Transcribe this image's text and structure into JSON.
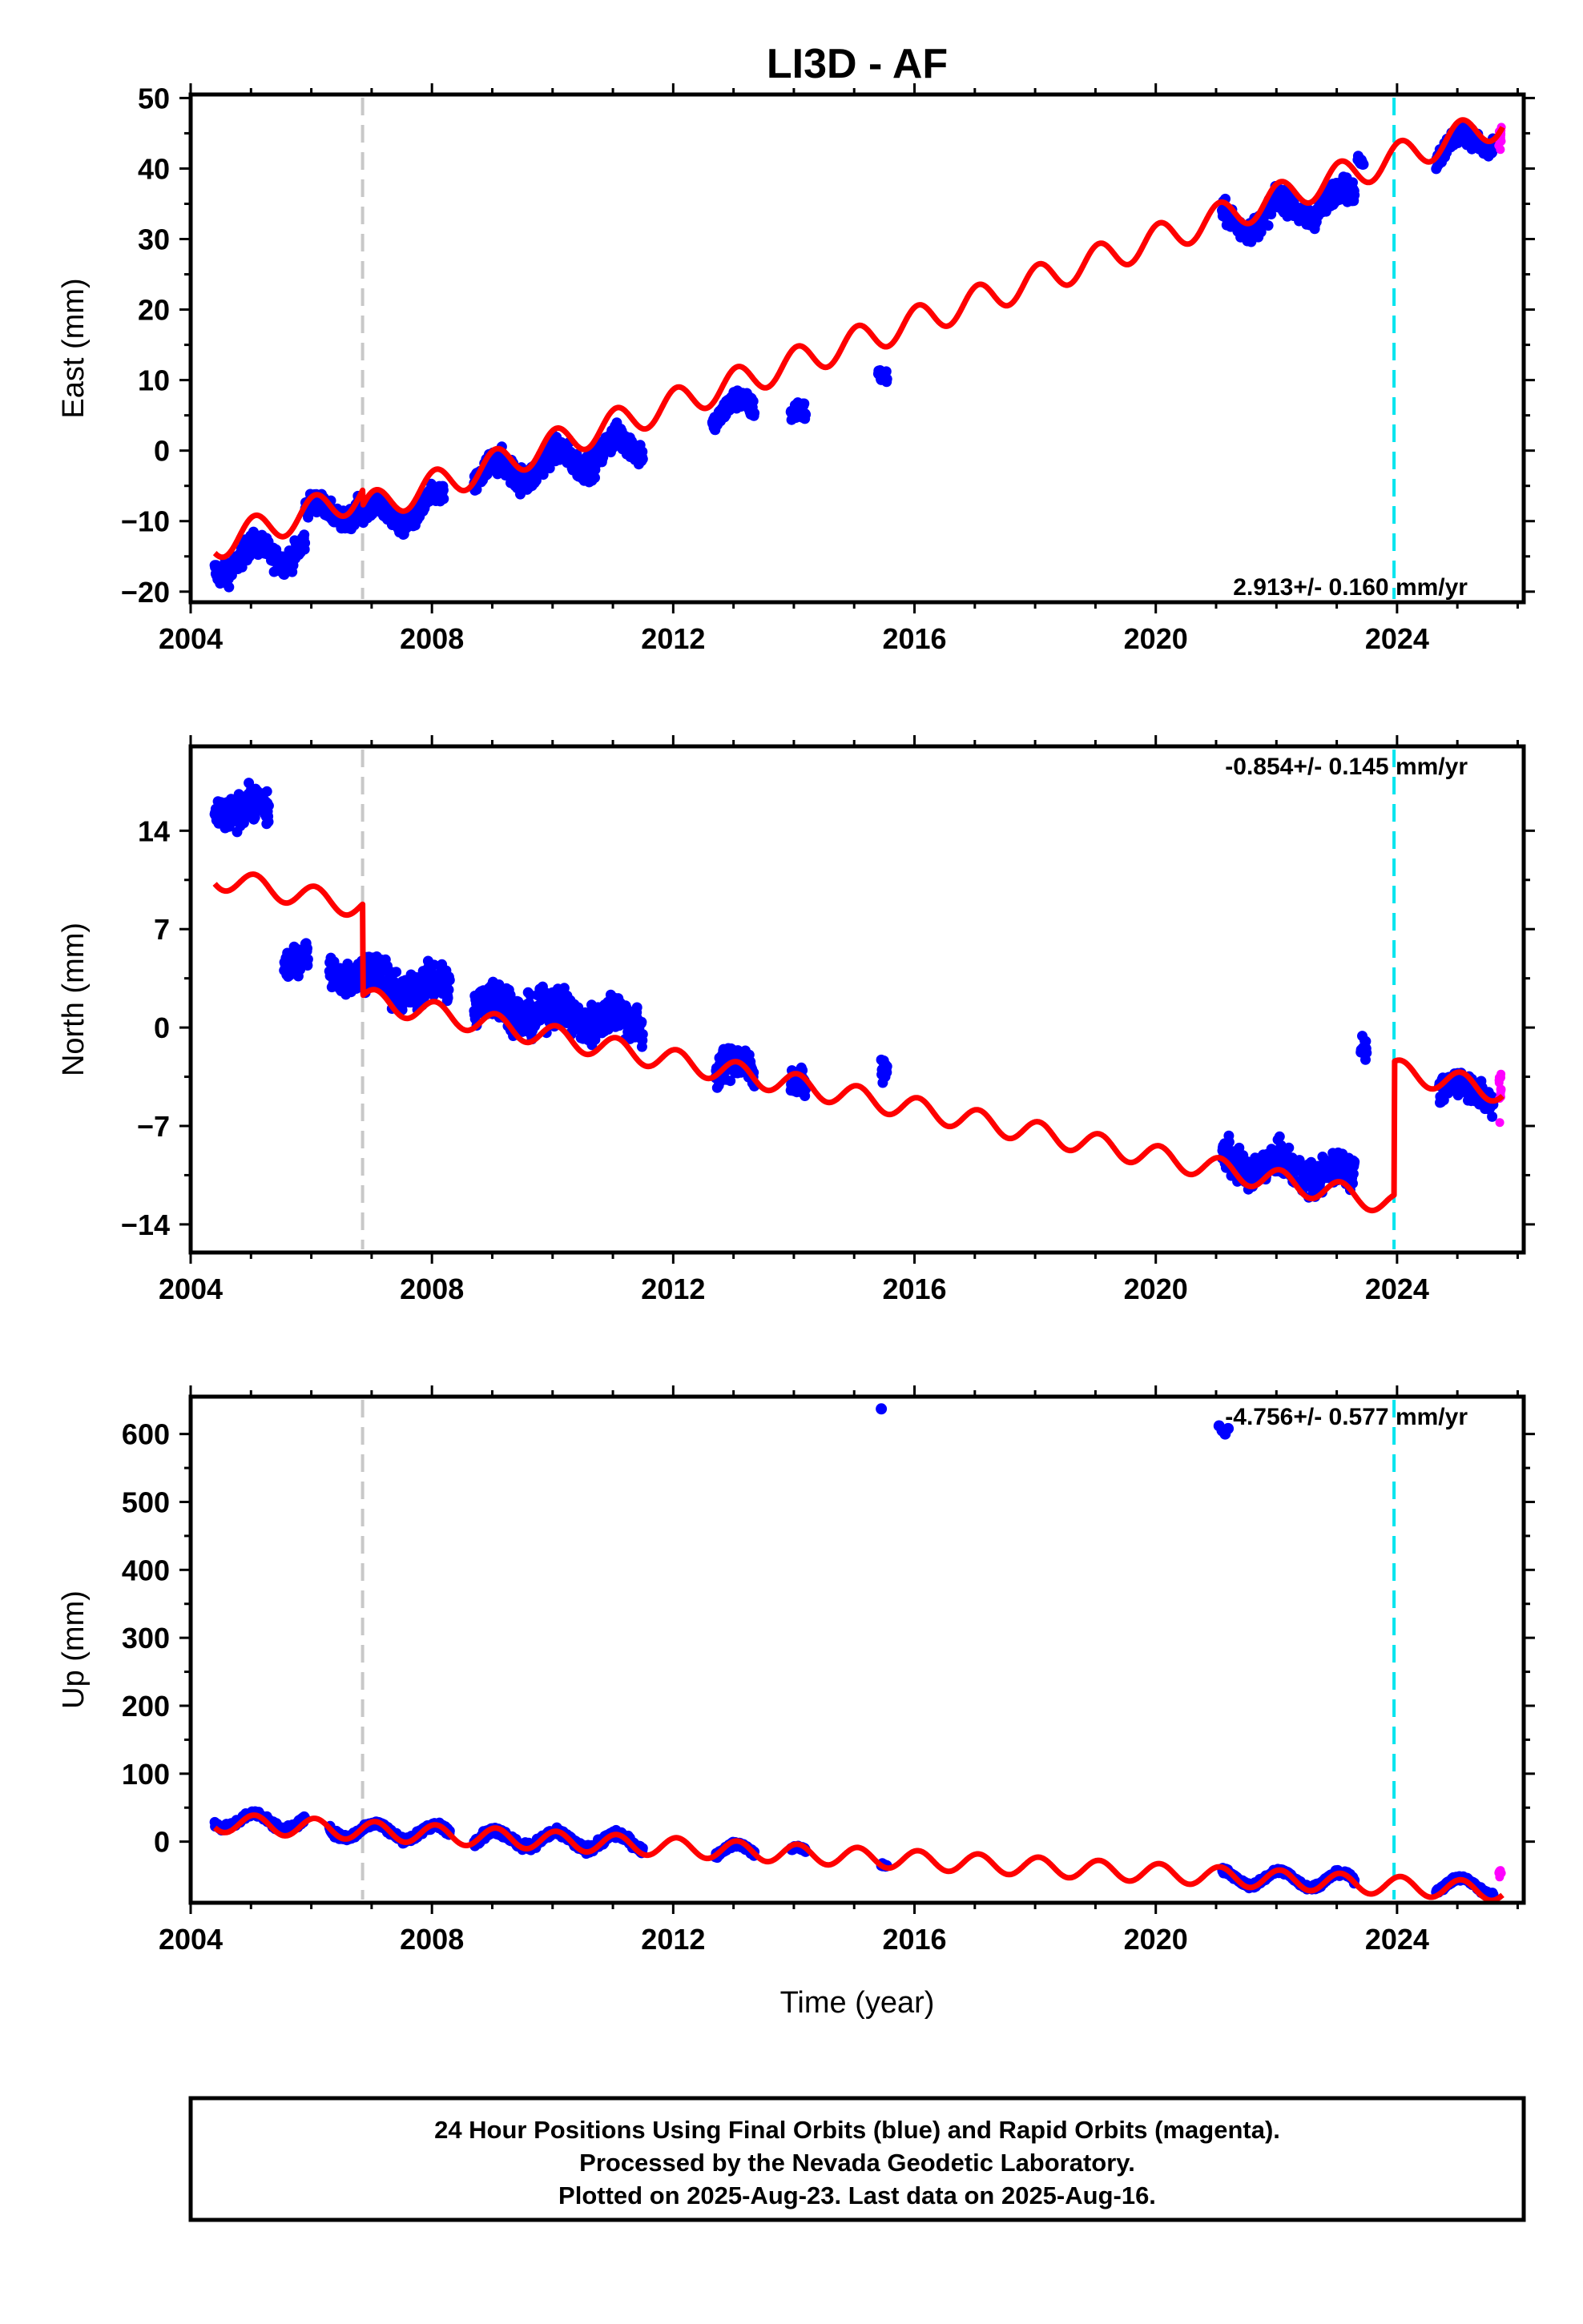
{
  "title": "LI3D - AF",
  "colors": {
    "final": "#0000ff",
    "rapid": "#ff00ff",
    "model": "#ff0000",
    "antenna_change": "#c8c8c8",
    "equipment_change": "#00e5ee"
  },
  "footer": {
    "lines": [
      "24 Hour Positions Using Final Orbits (blue) and Rapid Orbits (magenta).",
      "Processed by the Nevada Geodetic Laboratory.",
      "Plotted on 2025-Aug-23. Last data on 2025-Aug-16."
    ]
  },
  "chart_data": [
    {
      "type": "scatter",
      "component": "east",
      "ylabel": "East (mm)",
      "xlabel": "",
      "xlim": [
        2004,
        2026.1
      ],
      "ylim": [
        -21.5,
        50.5
      ],
      "xticks": [
        2004,
        2008,
        2012,
        2016,
        2020,
        2024
      ],
      "yticks": [
        -20,
        -10,
        0,
        10,
        20,
        30,
        40,
        50
      ],
      "rate_label": "2.913+/- 0.160 mm/yr",
      "rate_position": "bottom-right",
      "rate_mm_yr": 2.913,
      "model": {
        "intercept_2004": -14.5,
        "seasonal_amplitude": 2.2,
        "offsets": [
          {
            "epoch": 2006.85,
            "size": -2.2
          }
        ]
      },
      "vertical_lines": [
        {
          "x": 2006.85,
          "kind": "antenna_change"
        },
        {
          "x": 2023.95,
          "kind": "equipment_change"
        }
      ],
      "data_segments": [
        {
          "start": 2004.4,
          "end": 2005.9,
          "mean": -14.8,
          "spread": 3.5
        },
        {
          "start": 2005.9,
          "end": 2006.85,
          "mean": -8.5,
          "spread": 3.0
        },
        {
          "start": 2006.85,
          "end": 2008.2,
          "mean": -8.8,
          "spread": 3.0
        },
        {
          "start": 2008.7,
          "end": 2011.5,
          "mean": -1.5,
          "spread": 4.0
        },
        {
          "start": 2012.65,
          "end": 2013.35,
          "mean": 5.5,
          "spread": 3.0
        },
        {
          "start": 2013.95,
          "end": 2014.2,
          "mean": 4.0,
          "spread": 3.0
        },
        {
          "start": 2015.4,
          "end": 2015.55,
          "mean": 12.0,
          "spread": 2.0
        },
        {
          "start": 2021.1,
          "end": 2023.3,
          "mean": 34.0,
          "spread": 3.5
        },
        {
          "start": 2023.35,
          "end": 2023.45,
          "mean": 42.0,
          "spread": 1.0
        },
        {
          "start": 2024.65,
          "end": 2025.6,
          "mean": 43.5,
          "spread": 3.0
        }
      ],
      "rapid_segment": {
        "start": 2025.6,
        "end": 2025.75,
        "mean": 44.0,
        "spread": 3.0
      }
    },
    {
      "type": "scatter",
      "component": "north",
      "ylabel": "North (mm)",
      "xlabel": "",
      "xlim": [
        2004,
        2026.1
      ],
      "ylim": [
        -16,
        20
      ],
      "xticks": [
        2004,
        2008,
        2012,
        2016,
        2020,
        2024
      ],
      "yticks": [
        -14,
        -7,
        0,
        7,
        14
      ],
      "rate_label": "-0.854+/- 0.145 mm/yr",
      "rate_position": "top-right",
      "rate_mm_yr": -0.854,
      "model": {
        "intercept_2004": 11.0,
        "seasonal_amplitude": 0.8,
        "offsets": [
          {
            "epoch": 2006.85,
            "size": -6.5
          },
          {
            "epoch": 2023.95,
            "size": 9.5
          }
        ]
      },
      "vertical_lines": [
        {
          "x": 2006.85,
          "kind": "antenna_change"
        },
        {
          "x": 2023.95,
          "kind": "equipment_change"
        }
      ],
      "data_segments": [
        {
          "start": 2004.4,
          "end": 2005.3,
          "mean": 15.5,
          "spread": 2.5
        },
        {
          "start": 2005.55,
          "end": 2005.95,
          "mean": 5.0,
          "spread": 2.2
        },
        {
          "start": 2006.3,
          "end": 2006.85,
          "mean": 4.0,
          "spread": 2.2
        },
        {
          "start": 2006.85,
          "end": 2008.3,
          "mean": 3.0,
          "spread": 2.8
        },
        {
          "start": 2008.7,
          "end": 2011.5,
          "mean": 1.0,
          "spread": 3.0
        },
        {
          "start": 2012.7,
          "end": 2013.35,
          "mean": -3.0,
          "spread": 2.5
        },
        {
          "start": 2013.95,
          "end": 2014.2,
          "mean": -4.5,
          "spread": 2.0
        },
        {
          "start": 2015.45,
          "end": 2015.55,
          "mean": -2.5,
          "spread": 1.5
        },
        {
          "start": 2021.1,
          "end": 2023.3,
          "mean": -10.0,
          "spread": 2.5
        },
        {
          "start": 2023.4,
          "end": 2023.5,
          "mean": -1.0,
          "spread": 1.5
        },
        {
          "start": 2024.7,
          "end": 2025.6,
          "mean": -4.5,
          "spread": 2.0
        }
      ],
      "rapid_segment": {
        "start": 2025.6,
        "end": 2025.75,
        "mean": -4.0,
        "spread": 4.0
      }
    },
    {
      "type": "scatter",
      "component": "up",
      "ylabel": "Up (mm)",
      "xlabel": "Time (year)",
      "xlim": [
        2004,
        2026.1
      ],
      "ylim": [
        -90,
        655
      ],
      "xticks": [
        2004,
        2008,
        2012,
        2016,
        2020,
        2024
      ],
      "yticks": [
        0,
        100,
        200,
        300,
        400,
        500,
        600
      ],
      "rate_label": "-4.756+/- 0.577 mm/yr",
      "rate_position": "top-right",
      "rate_mm_yr": -4.756,
      "model": {
        "intercept_2004": 30,
        "seasonal_amplitude": 14,
        "offsets": []
      },
      "vertical_lines": [
        {
          "x": 2006.85,
          "kind": "antenna_change"
        },
        {
          "x": 2023.95,
          "kind": "equipment_change"
        }
      ],
      "data_segments": [
        {
          "start": 2004.4,
          "end": 2005.9,
          "mean": 30,
          "spread": 10
        },
        {
          "start": 2006.3,
          "end": 2008.3,
          "mean": 15,
          "spread": 10
        },
        {
          "start": 2008.7,
          "end": 2011.5,
          "mean": 2,
          "spread": 12
        },
        {
          "start": 2012.7,
          "end": 2013.35,
          "mean": -15,
          "spread": 8
        },
        {
          "start": 2013.95,
          "end": 2014.2,
          "mean": -20,
          "spread": 6
        },
        {
          "start": 2015.45,
          "end": 2015.55,
          "mean": -25,
          "spread": 5
        },
        {
          "start": 2021.1,
          "end": 2023.3,
          "mean": -55,
          "spread": 8
        },
        {
          "start": 2024.65,
          "end": 2025.6,
          "mean": -65,
          "spread": 8
        }
      ],
      "rapid_segment": {
        "start": 2025.6,
        "end": 2025.75,
        "mean": -45,
        "spread": 10
      },
      "outliers": [
        {
          "x": 2015.45,
          "y": 637
        },
        {
          "x": 2021.05,
          "y": 612
        },
        {
          "x": 2021.1,
          "y": 605
        },
        {
          "x": 2021.15,
          "y": 600
        },
        {
          "x": 2021.2,
          "y": 608
        }
      ]
    }
  ]
}
